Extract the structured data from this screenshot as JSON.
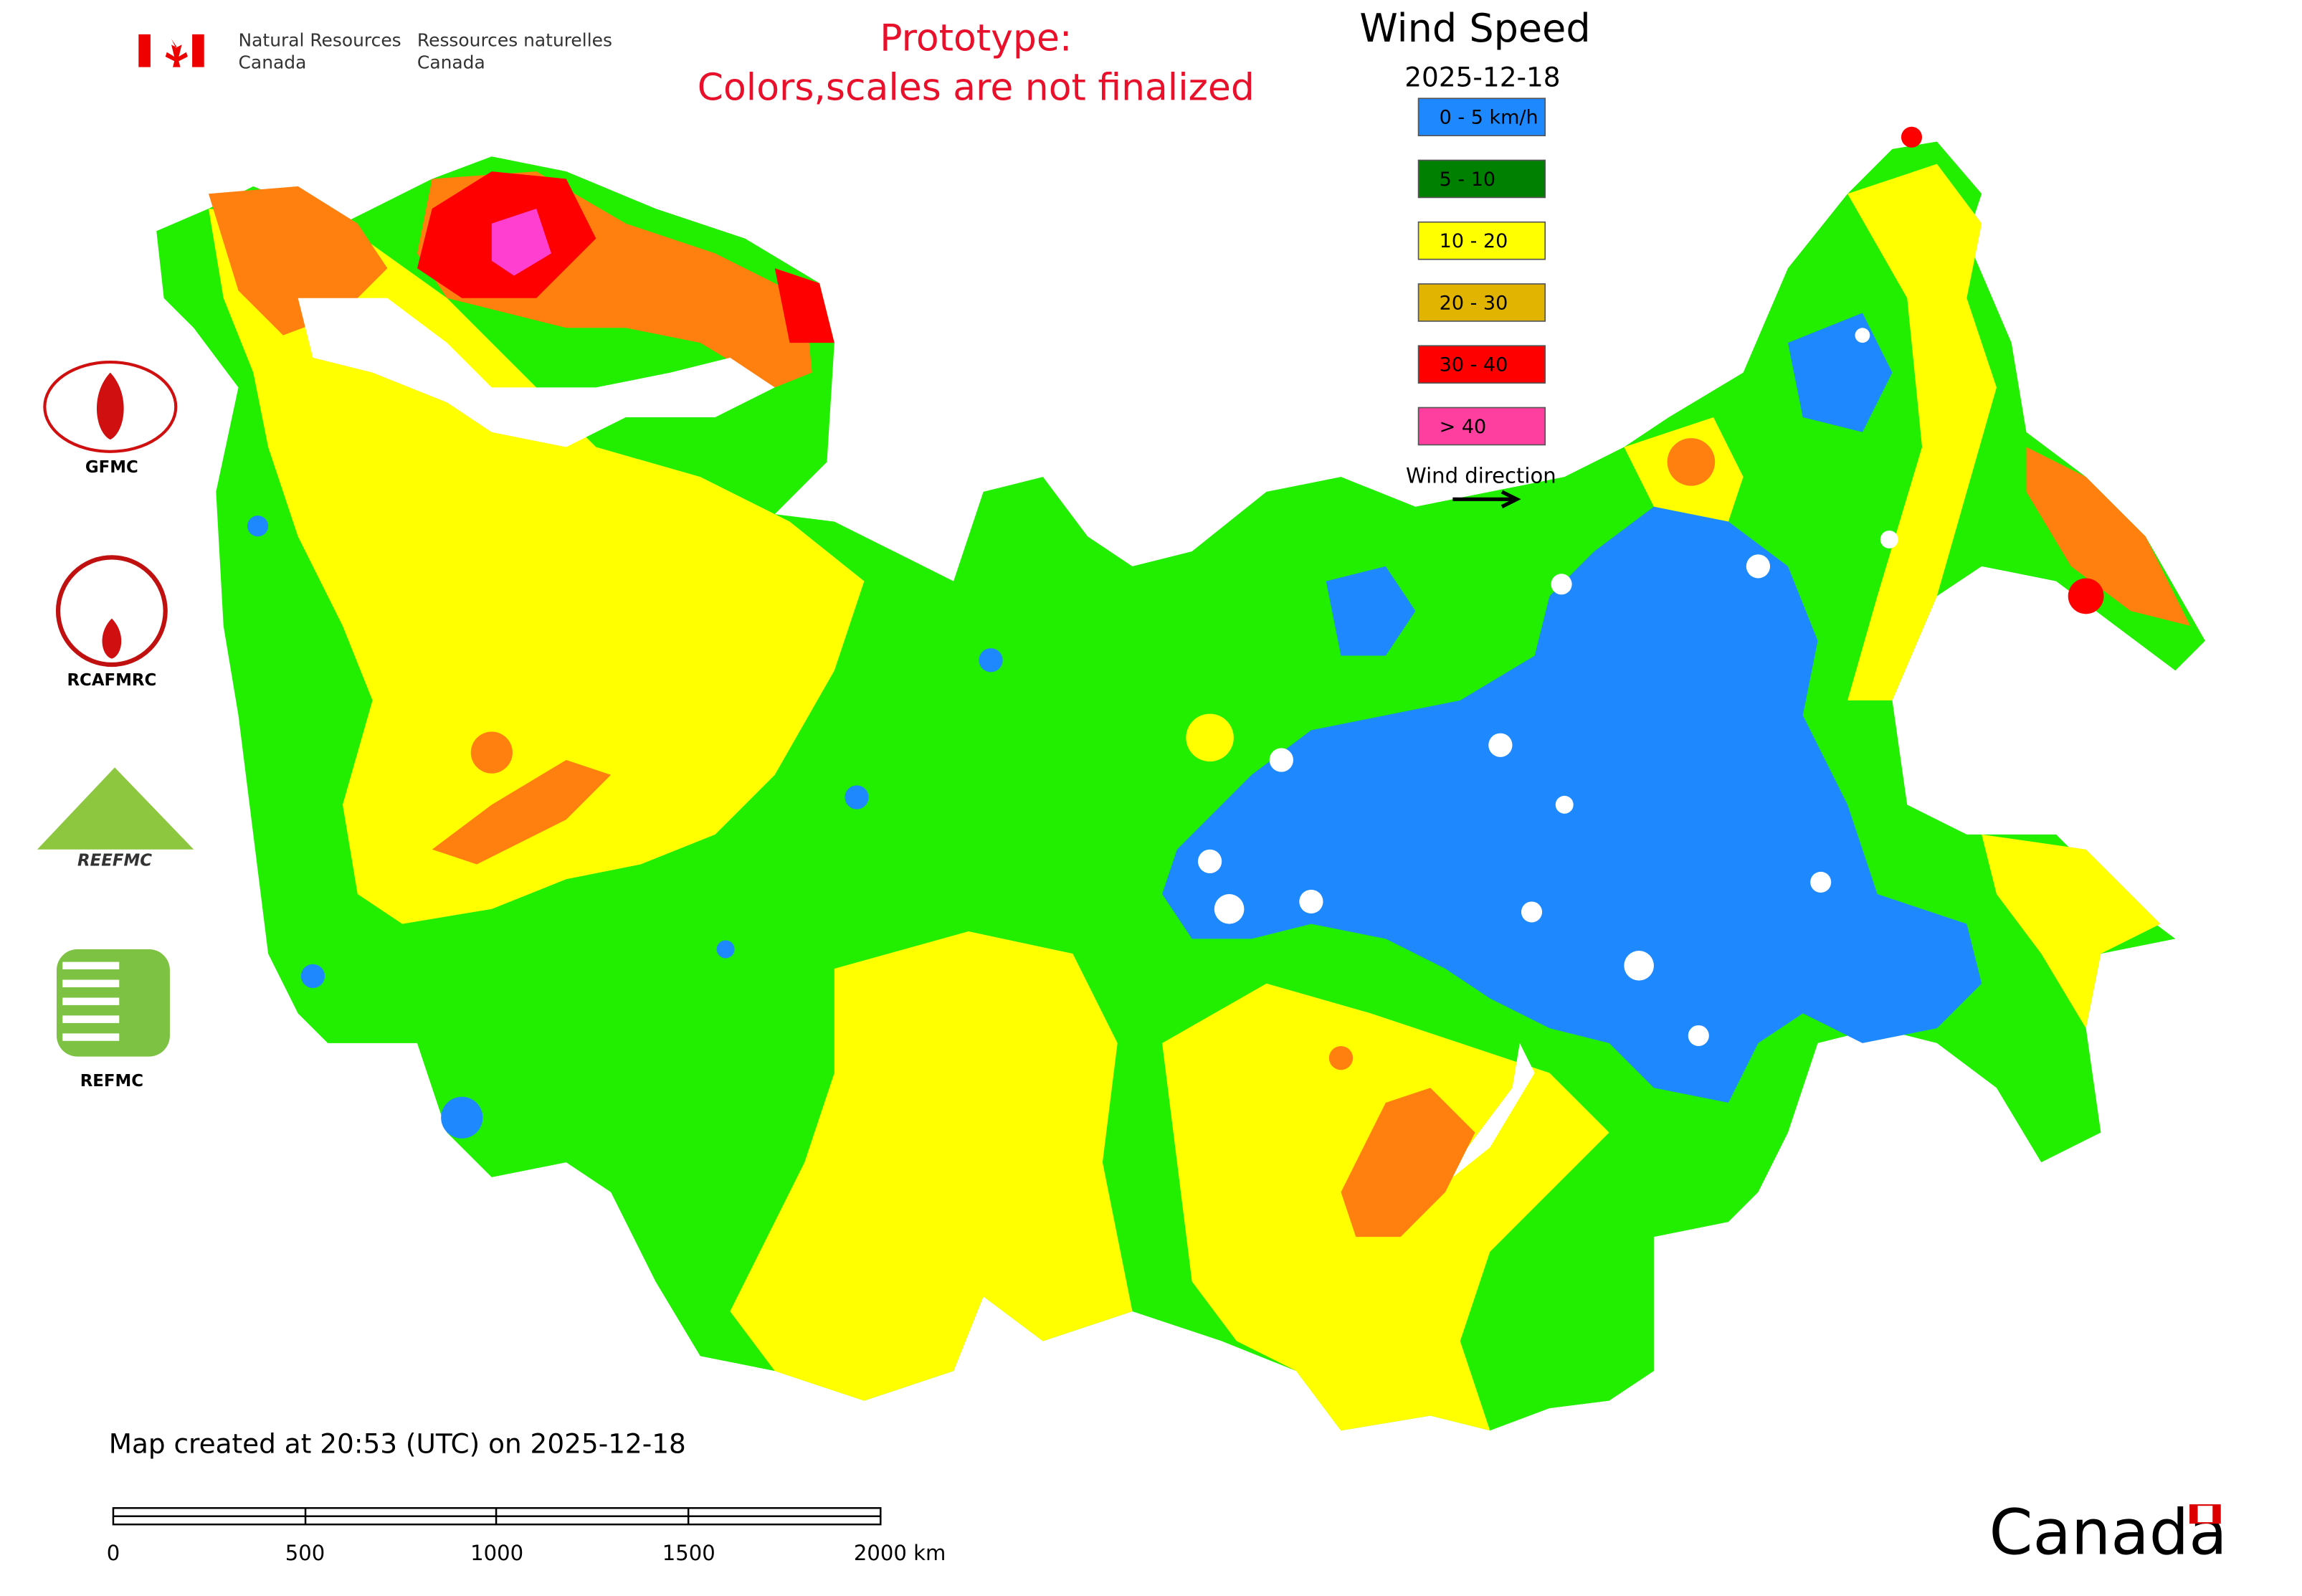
{
  "header": {
    "agency_en": [
      "Natural Resources",
      "Canada"
    ],
    "agency_fr": [
      "Ressources naturelles",
      "Canada"
    ]
  },
  "prototype_note": [
    "Prototype:",
    "Colors,scales are not finalized"
  ],
  "legend": {
    "title": "Wind Speed",
    "date": "2025-12-18",
    "items": [
      {
        "label": "0 - 5 km/h",
        "color": "#1e88ff"
      },
      {
        "label": "5 - 10",
        "color": "#008000"
      },
      {
        "label": "10 - 20",
        "color": "#ffff00"
      },
      {
        "label": "20 - 30",
        "color": "#e0b400"
      },
      {
        "label": "30 - 40",
        "color": "#ff0000"
      },
      {
        "label": "> 40",
        "color": "#ff3fa0"
      }
    ],
    "wind_direction": "Wind direction"
  },
  "logos": [
    "GFMC",
    "RCAFMRC",
    "REEFMC",
    "REFMC"
  ],
  "footer": {
    "created": "Map created at 20:53 (UTC) on 2025-12-18",
    "scale_labels": [
      "0",
      "500",
      "1000",
      "1500",
      "2000 km"
    ]
  },
  "wordmark": "Canada"
}
